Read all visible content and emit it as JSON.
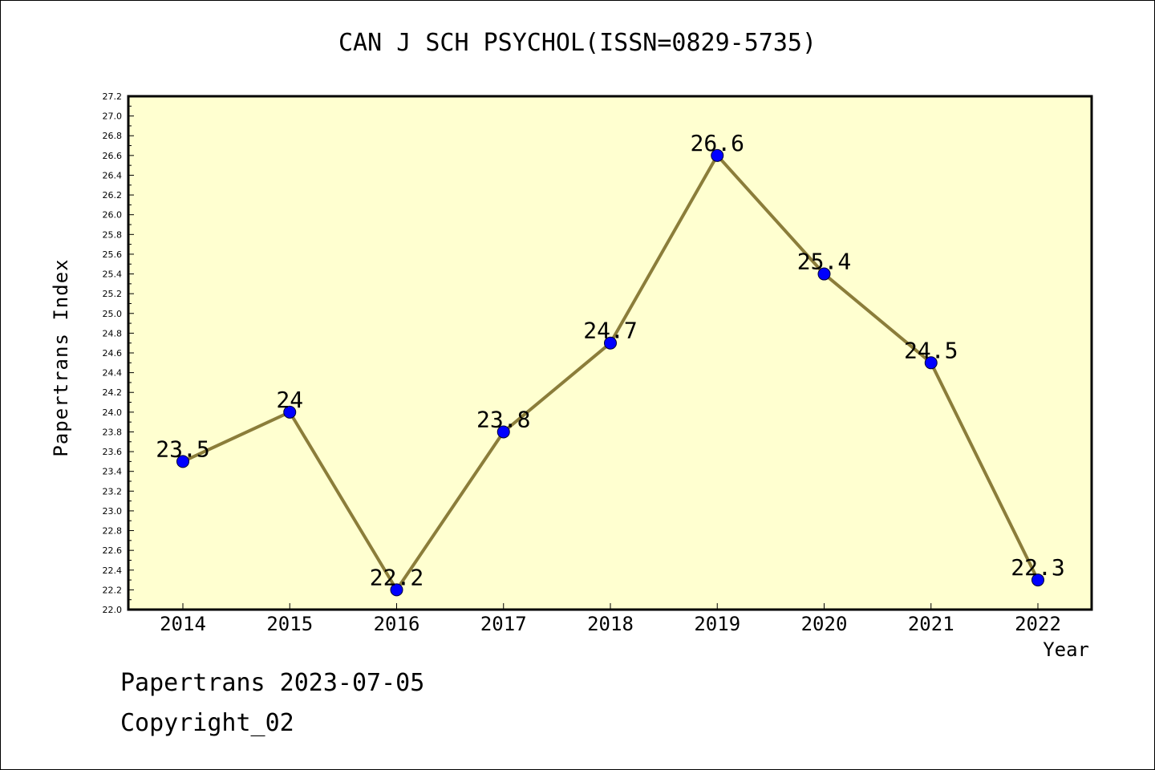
{
  "chart_data": {
    "type": "line",
    "title": "CAN J SCH PSYCHOL(ISSN=0829-5735)",
    "xlabel": "Year",
    "ylabel": "Papertrans Index",
    "categories": [
      "2014",
      "2015",
      "2016",
      "2017",
      "2018",
      "2019",
      "2020",
      "2021",
      "2022"
    ],
    "series": [
      {
        "values": [
          23.5,
          24,
          22.2,
          23.8,
          24.7,
          26.6,
          25.4,
          24.5,
          22.3
        ],
        "labels": [
          "23.5",
          "24",
          "22.2",
          "23.8",
          "24.7",
          "26.6",
          "25.4",
          "24.5",
          "22.3"
        ]
      }
    ],
    "ylim": [
      22.0,
      27.2
    ],
    "ytick_step": 0.2,
    "grid": false,
    "colors": {
      "plot_background": "#ffffd0",
      "line": "#8b7d3a",
      "marker": "#0000ff"
    }
  },
  "footer": {
    "date": "Papertrans 2023-07-05",
    "copyright": "Copyright_02"
  }
}
